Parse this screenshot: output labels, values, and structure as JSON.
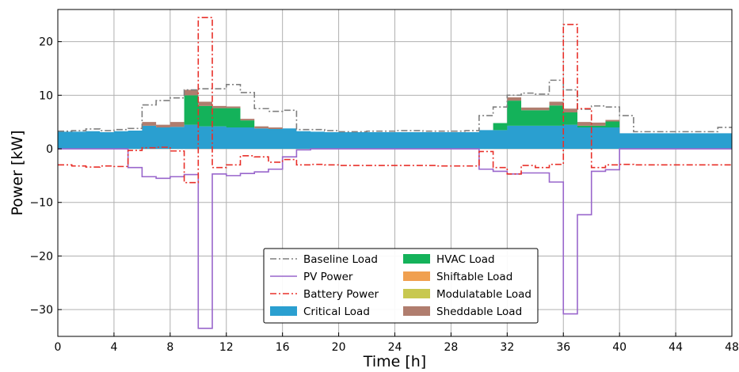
{
  "chart_data": {
    "type": "area",
    "xlabel": "Time [h]",
    "ylabel": "Power [kW]",
    "xlim": [
      0,
      48
    ],
    "ylim": [
      -35,
      26
    ],
    "xticks": [
      0,
      4,
      8,
      12,
      16,
      20,
      24,
      28,
      32,
      36,
      40,
      44,
      48
    ],
    "yticks": [
      -30,
      -20,
      -10,
      0,
      10,
      20
    ],
    "ytick_labels": [
      "−30",
      "−20",
      "−10",
      "0",
      "10",
      "20"
    ],
    "grid": true,
    "legend_position": "bottom-center",
    "x_step_hours": 1,
    "stacked_series": [
      {
        "name": "Critical Load",
        "color": "#2a9fd0",
        "values": [
          3.2,
          3.2,
          3.3,
          3.1,
          3.3,
          3.4,
          4.3,
          4.0,
          4.1,
          4.5,
          4.2,
          4.2,
          4.0,
          4.0,
          3.8,
          3.7,
          3.8,
          3.3,
          3.2,
          3.1,
          3.1,
          3.1,
          3.1,
          3.1,
          3.1,
          3.1,
          3.1,
          3.1,
          3.1,
          3.1,
          3.5,
          3.5,
          4.3,
          4.3,
          4.3,
          4.3,
          4.5,
          4.0,
          4.0,
          4.0,
          2.9,
          2.9,
          2.9,
          2.9,
          2.9,
          2.9,
          2.9,
          2.9
        ]
      },
      {
        "name": "HVAC Load",
        "color": "#14b25a",
        "values": [
          0,
          0,
          0,
          0,
          0,
          0,
          0,
          0,
          0,
          5.5,
          3.8,
          3.4,
          3.6,
          1.3,
          0,
          0,
          0,
          0,
          0,
          0,
          0,
          0,
          0,
          0,
          0,
          0,
          0,
          0,
          0,
          0,
          0,
          1.3,
          4.7,
          2.9,
          2.9,
          3.8,
          2.3,
          0.3,
          0.3,
          1.1,
          0,
          0,
          0,
          0,
          0,
          0,
          0,
          0
        ]
      },
      {
        "name": "Shiftable Load",
        "color": "#f0a050",
        "values": [
          0,
          0,
          0,
          0,
          0,
          0,
          0,
          0,
          0,
          0,
          0,
          0,
          0,
          0,
          0,
          0,
          0,
          0,
          0,
          0,
          0,
          0,
          0,
          0,
          0,
          0,
          0,
          0,
          0,
          0,
          0,
          0,
          0,
          0,
          0,
          0,
          0,
          0,
          0,
          0,
          0,
          0,
          0,
          0,
          0,
          0,
          0,
          0
        ]
      },
      {
        "name": "Modulatable Load",
        "color": "#c8c850",
        "values": [
          0,
          0,
          0,
          0,
          0,
          0,
          0,
          0,
          0,
          0,
          0,
          0,
          0,
          0,
          0,
          0,
          0,
          0,
          0,
          0,
          0,
          0,
          0,
          0,
          0,
          0,
          0,
          0,
          0,
          0,
          0,
          0,
          0,
          0,
          0,
          0,
          0,
          0,
          0,
          0,
          0,
          0,
          0,
          0,
          0,
          0,
          0,
          0
        ]
      },
      {
        "name": "Sheddable Load",
        "color": "#b07d6e",
        "values": [
          0,
          0,
          0,
          0,
          0,
          0,
          0.7,
          0.5,
          0.9,
          1.0,
          0.8,
          0.4,
          0.3,
          0.3,
          0.4,
          0.3,
          0,
          0,
          0,
          0,
          0,
          0,
          0,
          0,
          0,
          0,
          0,
          0,
          0,
          0,
          0,
          0,
          0.6,
          0.5,
          0.5,
          0.7,
          0.7,
          0.7,
          0.6,
          0.3,
          0,
          0,
          0,
          0,
          0,
          0,
          0,
          0
        ]
      }
    ],
    "line_series": [
      {
        "name": "Baseline Load",
        "color": "#7f7f7f",
        "dash": "dashdot",
        "values": [
          3.3,
          3.4,
          3.7,
          3.4,
          3.6,
          3.8,
          8.2,
          9.0,
          9.5,
          11.0,
          11.2,
          11.2,
          12.0,
          10.5,
          7.5,
          7.0,
          7.2,
          3.6,
          3.6,
          3.4,
          3.2,
          3.2,
          3.3,
          3.3,
          3.4,
          3.4,
          3.3,
          3.3,
          3.3,
          3.4,
          6.2,
          7.8,
          10.0,
          10.4,
          10.2,
          12.8,
          11.0,
          7.4,
          8.0,
          7.8,
          6.2,
          3.2,
          3.2,
          3.2,
          3.2,
          3.2,
          3.2,
          4.0
        ]
      },
      {
        "name": "PV Power",
        "color": "#9966cc",
        "dash": "solid",
        "values": [
          0,
          0,
          0,
          0,
          0,
          -3.5,
          -5.2,
          -5.5,
          -5.2,
          -4.8,
          -33.5,
          -4.7,
          -5.0,
          -4.6,
          -4.3,
          -3.8,
          -1.5,
          -0.2,
          0,
          0,
          0,
          0,
          0,
          0,
          0,
          0,
          0,
          0,
          0,
          0,
          -3.8,
          -4.2,
          -4.7,
          -4.5,
          -4.5,
          -6.2,
          -30.8,
          -12.3,
          -4.2,
          -3.9,
          0,
          0,
          0,
          0,
          0,
          0,
          0,
          0
        ]
      },
      {
        "name": "Battery Power",
        "color": "#e8302a",
        "dash": "dashdot",
        "values": [
          -3.0,
          -3.2,
          -3.4,
          -3.2,
          -3.3,
          -0.3,
          0.2,
          0.3,
          -0.4,
          -6.3,
          24.5,
          -3.5,
          -3.0,
          -1.3,
          -1.5,
          -2.5,
          -2.0,
          -3.0,
          -2.9,
          -3.0,
          -3.1,
          -3.1,
          -3.1,
          -3.1,
          -3.1,
          -3.1,
          -3.1,
          -3.2,
          -3.2,
          -3.2,
          -0.5,
          -3.5,
          -4.7,
          -3.1,
          -3.5,
          -2.9,
          23.2,
          7.5,
          -3.5,
          -3.0,
          -2.9,
          -3.0,
          -3.0,
          -3.0,
          -3.0,
          -3.0,
          -3.0,
          -3.0
        ]
      }
    ],
    "legend_entries": [
      [
        "Baseline Load",
        "HVAC Load"
      ],
      [
        "PV Power",
        "Shiftable Load"
      ],
      [
        "Battery Power",
        "Modulatable Load"
      ],
      [
        "Critical Load",
        "Sheddable Load"
      ]
    ]
  }
}
